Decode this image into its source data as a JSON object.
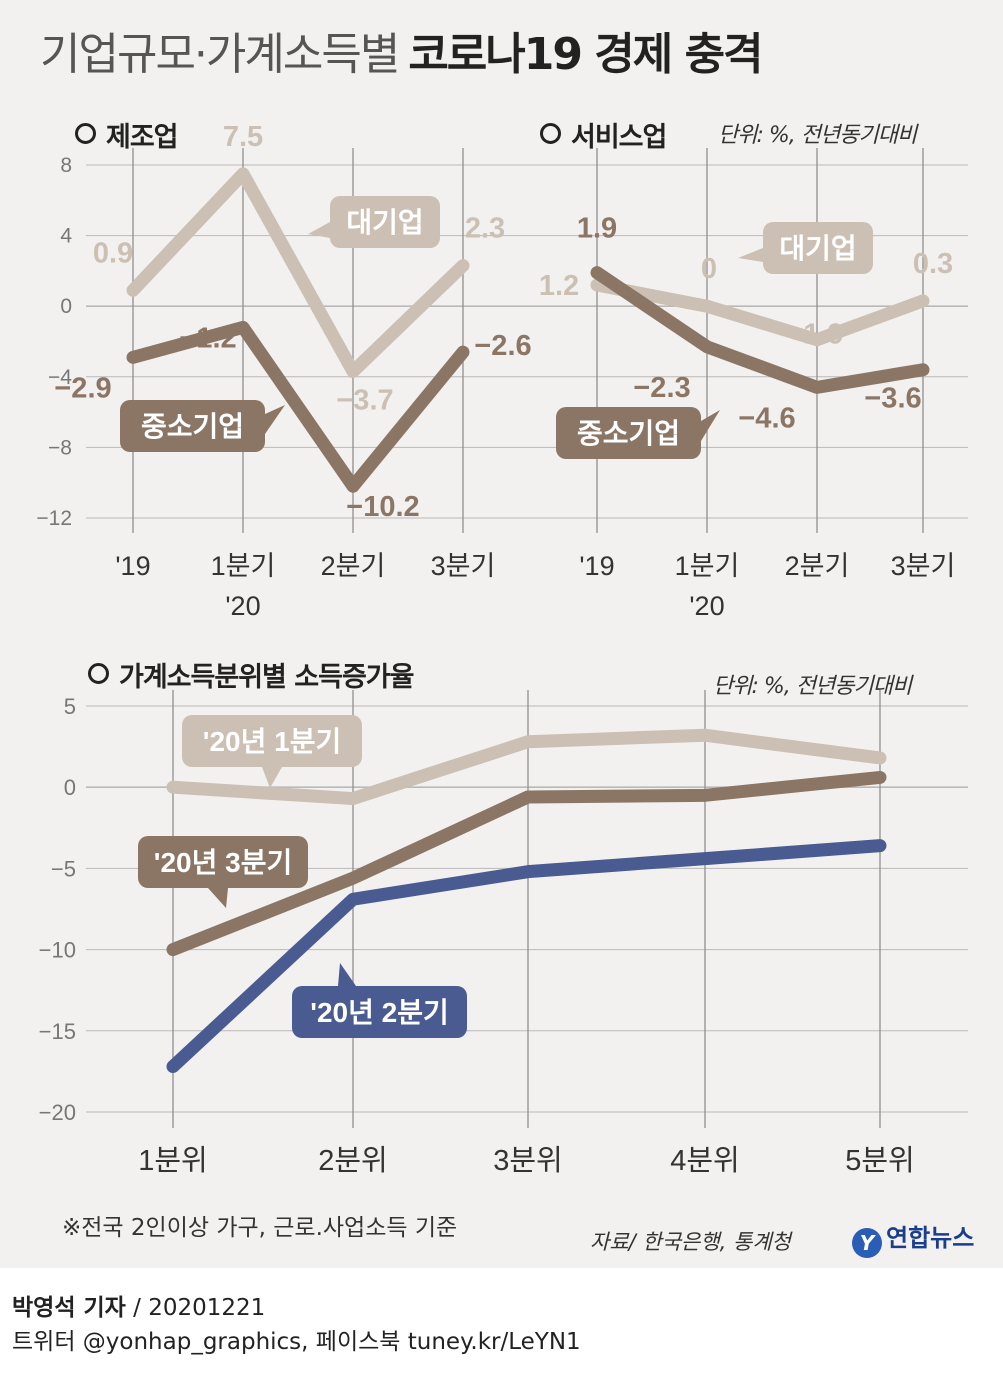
{
  "title": {
    "light": "기업규모·가계소득별",
    "bold": "코로나19 경제 충격"
  },
  "section1": {
    "left_label": "제조업",
    "right_label": "서비스업",
    "unit": "단위: %, 전년동기대비"
  },
  "section2": {
    "label": "가계소득분위별 소득증가율",
    "unit": "단위: %, 전년동기대비"
  },
  "footnote": "※전국 2인이상 가구, 근로.사업소득 기준",
  "source": "자료/ 한국은행, 통계청",
  "logo": {
    "mark": "Y",
    "text": "연합뉴스"
  },
  "credit": {
    "reporter": "박영석 기자",
    "date": "20201221",
    "sns": "트위터 @yonhap_graphics, 페이스북 tuney.kr/LeYN1"
  },
  "colors": {
    "large": "#cbc0b3",
    "sme": "#8b7666",
    "q2": "#4a5b91",
    "grid": "#b9b9b9",
    "axis": "#8f8f8f"
  },
  "chart_data": [
    {
      "type": "line",
      "title": "제조업",
      "categories": [
        "'19",
        "1분기 '20",
        "2분기",
        "3분기"
      ],
      "ylim": [
        -12,
        8
      ],
      "yticks": [
        8,
        4,
        0,
        -4,
        -8,
        -12
      ],
      "series": [
        {
          "name": "대기업",
          "labels": [
            "0.9",
            "7.5",
            "-3.7",
            "2.3"
          ],
          "values": [
            0.9,
            7.5,
            -3.7,
            2.3
          ]
        },
        {
          "name": "중소기업",
          "labels": [
            "-2.9",
            "-1.2",
            "-10.2",
            "-2.6"
          ],
          "values": [
            -2.9,
            -1.2,
            -10.2,
            -2.6
          ]
        }
      ]
    },
    {
      "type": "line",
      "title": "서비스업",
      "categories": [
        "'19",
        "1분기 '20",
        "2분기",
        "3분기"
      ],
      "ylim": [
        -12,
        8
      ],
      "series": [
        {
          "name": "대기업",
          "labels": [
            "1.2",
            "0",
            "-1.9",
            "0.3"
          ],
          "values": [
            1.2,
            0,
            -1.9,
            0.3
          ]
        },
        {
          "name": "중소기업",
          "labels": [
            "1.9",
            "-2.3",
            "-4.6",
            "-3.6"
          ],
          "values": [
            1.9,
            -2.3,
            -4.6,
            -3.6
          ]
        }
      ]
    },
    {
      "type": "line",
      "title": "가계소득분위별 소득증가율",
      "categories": [
        "1분위",
        "2분위",
        "3분위",
        "4분위",
        "5분위"
      ],
      "ylim": [
        -20,
        5
      ],
      "yticks": [
        5,
        0,
        -5,
        -10,
        -15,
        -20
      ],
      "series": [
        {
          "name": "'20년 1분기",
          "values": [
            0,
            -0.7,
            2.8,
            3.2,
            1.8
          ]
        },
        {
          "name": "'20년 3분기",
          "values": [
            -10.0,
            -5.6,
            -0.6,
            -0.5,
            0.6
          ]
        },
        {
          "name": "'20년 2분기",
          "values": [
            -17.2,
            -6.9,
            -5.2,
            -4.4,
            -3.6
          ]
        }
      ]
    }
  ]
}
